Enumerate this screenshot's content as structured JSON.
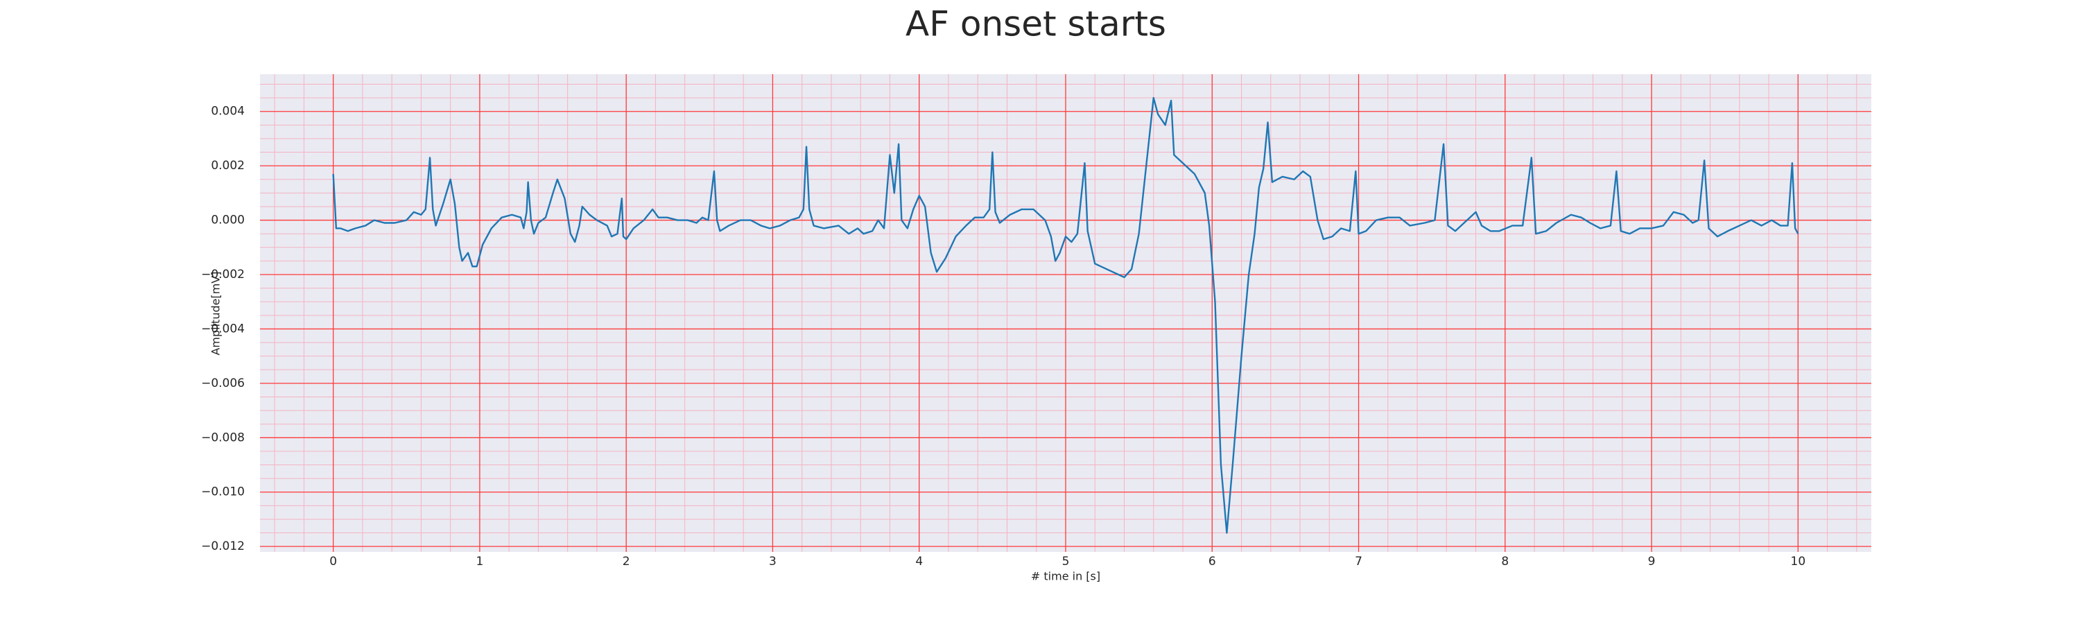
{
  "chart_data": {
    "type": "line",
    "title": "AF onset starts",
    "x_label": "# time in [s]",
    "y_label": "Amplitude[mV]",
    "xlim": [
      -0.5,
      10.5
    ],
    "ylim": [
      -0.0122,
      0.00537
    ],
    "xticks": [
      0,
      1,
      2,
      3,
      4,
      5,
      6,
      7,
      8,
      9,
      10
    ],
    "yticks": [
      {
        "value": -0.012,
        "label": "−0.012"
      },
      {
        "value": -0.01,
        "label": "−0.010"
      },
      {
        "value": -0.008,
        "label": "−0.008"
      },
      {
        "value": -0.006,
        "label": "−0.006"
      },
      {
        "value": -0.004,
        "label": "−0.004"
      },
      {
        "value": -0.002,
        "label": "−0.002"
      },
      {
        "value": 0,
        "label": "0.000"
      },
      {
        "value": 0.002,
        "label": "0.002"
      },
      {
        "value": 0.004,
        "label": "0.004"
      }
    ],
    "grid": true,
    "background": "#eaeaf2",
    "grid_color": "#ff3b3b",
    "minor_grid_color": "#f4b3c2",
    "x": [
      0,
      0.02,
      0.05,
      0.1,
      0.15,
      0.22,
      0.28,
      0.35,
      0.42,
      0.5,
      0.55,
      0.6,
      0.63,
      0.66,
      0.68,
      0.7,
      0.75,
      0.8,
      0.83,
      0.86,
      0.88,
      0.92,
      0.95,
      0.98,
      1.02,
      1.08,
      1.15,
      1.22,
      1.28,
      1.3,
      1.32,
      1.33,
      1.35,
      1.37,
      1.4,
      1.45,
      1.5,
      1.53,
      1.58,
      1.62,
      1.65,
      1.68,
      1.7,
      1.75,
      1.8,
      1.87,
      1.9,
      1.94,
      1.97,
      1.98,
      2,
      2.05,
      2.12,
      2.18,
      2.22,
      2.28,
      2.35,
      2.42,
      2.48,
      2.52,
      2.56,
      2.6,
      2.62,
      2.64,
      2.7,
      2.78,
      2.85,
      2.92,
      2.98,
      3.05,
      3.12,
      3.18,
      3.21,
      3.23,
      3.25,
      3.28,
      3.35,
      3.45,
      3.52,
      3.58,
      3.62,
      3.68,
      3.72,
      3.76,
      3.8,
      3.83,
      3.86,
      3.88,
      3.92,
      3.96,
      4,
      4.04,
      4.08,
      4.12,
      4.18,
      4.25,
      4.32,
      4.38,
      4.44,
      4.48,
      4.5,
      4.52,
      4.55,
      4.62,
      4.7,
      4.78,
      4.86,
      4.9,
      4.93,
      4.96,
      5,
      5.04,
      5.08,
      5.13,
      5.15,
      5.2,
      5.28,
      5.36,
      5.4,
      5.45,
      5.5,
      5.55,
      5.6,
      5.63,
      5.68,
      5.72,
      5.74,
      5.8,
      5.88,
      5.95,
      5.98,
      6.02,
      6.06,
      6.1,
      6.14,
      6.2,
      6.25,
      6.29,
      6.32,
      6.35,
      6.38,
      6.41,
      6.48,
      6.56,
      6.62,
      6.67,
      6.72,
      6.76,
      6.82,
      6.88,
      6.94,
      6.98,
      7,
      7.05,
      7.12,
      7.2,
      7.28,
      7.35,
      7.45,
      7.52,
      7.58,
      7.61,
      7.66,
      7.72,
      7.8,
      7.84,
      7.9,
      7.96,
      8.05,
      8.12,
      8.18,
      8.21,
      8.28,
      8.35,
      8.45,
      8.52,
      8.58,
      8.65,
      8.72,
      8.76,
      8.79,
      8.85,
      8.92,
      9,
      9.08,
      9.15,
      9.22,
      9.28,
      9.32,
      9.36,
      9.39,
      9.45,
      9.52,
      9.6,
      9.68,
      9.75,
      9.82,
      9.88,
      9.93,
      9.96,
      9.98,
      10
    ],
    "series": [
      {
        "color": "#1f77b4",
        "values": [
          0.0017,
          -0.0003,
          -0.0003,
          -0.0004,
          -0.0003,
          -0.0002,
          0,
          -0.0001,
          -0.0001,
          0,
          0.0003,
          0.0002,
          0.0004,
          0.0023,
          0.0004,
          -0.0002,
          0.0006,
          0.0015,
          0.0006,
          -0.001,
          -0.0015,
          -0.0012,
          -0.0017,
          -0.0017,
          -0.0009,
          -0.0003,
          0.0001,
          0.0002,
          0.0001,
          -0.0003,
          0.0003,
          0.0014,
          0,
          -0.0005,
          -0.0001,
          0.0001,
          0.001,
          0.0015,
          0.0008,
          -0.0005,
          -0.0008,
          -0.0002,
          0.0005,
          0.0002,
          0,
          -0.0002,
          -0.0006,
          -0.0005,
          0.0008,
          -0.0006,
          -0.0007,
          -0.0003,
          0,
          0.0004,
          0.0001,
          0.0001,
          0,
          0,
          -0.0001,
          0.0001,
          0,
          0.0018,
          0,
          -0.0004,
          -0.0002,
          0,
          0,
          -0.0002,
          -0.0003,
          -0.0002,
          0,
          0.0001,
          0.0004,
          0.0027,
          0.0004,
          -0.0002,
          -0.0003,
          -0.0002,
          -0.0005,
          -0.0003,
          -0.0005,
          -0.0004,
          0,
          -0.0003,
          0.0024,
          0.001,
          0.0028,
          0,
          -0.0003,
          0.0004,
          0.0009,
          0.0005,
          -0.0012,
          -0.0019,
          -0.0014,
          -0.0006,
          -0.0002,
          0.0001,
          0.0001,
          0.0004,
          0.0025,
          0.0003,
          -0.0001,
          0.0002,
          0.0004,
          0.0004,
          0,
          -0.0006,
          -0.0015,
          -0.0012,
          -0.0006,
          -0.0008,
          -0.0005,
          0.0021,
          -0.0004,
          -0.0016,
          -0.0018,
          -0.002,
          -0.0021,
          -0.0018,
          -0.0005,
          0.002,
          0.0045,
          0.0039,
          0.0035,
          0.0044,
          0.0024,
          0.0021,
          0.0017,
          0.001,
          -0.0002,
          -0.003,
          -0.009,
          -0.0115,
          -0.009,
          -0.005,
          -0.002,
          -0.0005,
          0.0012,
          0.0019,
          0.0036,
          0.0014,
          0.0016,
          0.0015,
          0.0018,
          0.0016,
          0,
          -0.0007,
          -0.0006,
          -0.0003,
          -0.0004,
          0.0018,
          -0.0005,
          -0.0004,
          0,
          0.0001,
          0.0001,
          -0.0002,
          -0.0001,
          0,
          0.0028,
          -0.0002,
          -0.0004,
          -0.0001,
          0.0003,
          -0.0002,
          -0.0004,
          -0.0004,
          -0.0002,
          -0.0002,
          0.0023,
          -0.0005,
          -0.0004,
          -0.0001,
          0.0002,
          0.0001,
          -0.0001,
          -0.0003,
          -0.0002,
          0.0018,
          -0.0004,
          -0.0005,
          -0.0003,
          -0.0003,
          -0.0002,
          0.0003,
          0.0002,
          -0.0001,
          0,
          0.0022,
          -0.0003,
          -0.0006,
          -0.0004,
          -0.0002,
          0,
          -0.0002,
          0,
          -0.0002,
          -0.0002,
          0.0021,
          -0.0003,
          -0.0005
        ]
      }
    ]
  }
}
